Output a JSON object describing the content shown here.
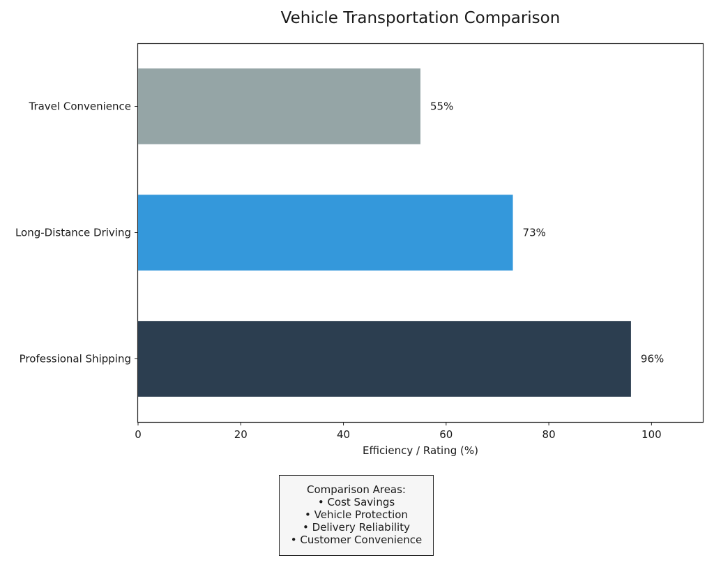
{
  "chart_data": {
    "type": "bar",
    "orientation": "horizontal",
    "title": "Vehicle Transportation Comparison",
    "xlabel": "Efficiency / Rating (%)",
    "ylabel": "",
    "categories": [
      "Travel Convenience",
      "Long-Distance Driving",
      "Professional Shipping"
    ],
    "values": [
      55,
      73,
      96
    ],
    "data_labels": [
      "55%",
      "73%",
      "96%"
    ],
    "colors": [
      "#95a5a6",
      "#3498db",
      "#2c3e50"
    ],
    "xlim": [
      0,
      110
    ],
    "xticks": [
      0,
      20,
      40,
      60,
      80,
      100
    ],
    "grid": false
  },
  "annotation": {
    "heading": "Comparison Areas:",
    "items": [
      "• Cost Savings",
      "• Vehicle Protection",
      "• Delivery Reliability",
      "• Customer Convenience"
    ]
  }
}
